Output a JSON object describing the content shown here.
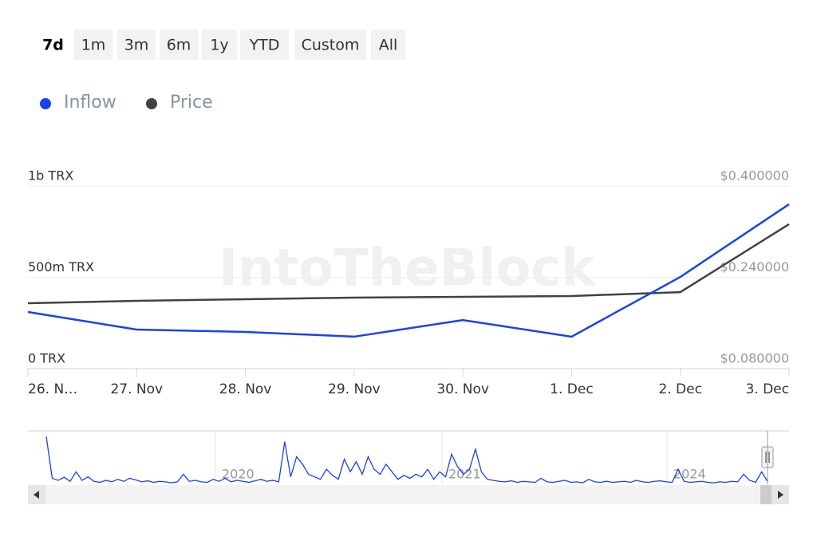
{
  "range_buttons": {
    "items": [
      "7d",
      "1m",
      "3m",
      "6m",
      "1y",
      "YTD",
      "Custom",
      "All"
    ],
    "selected_index": 0
  },
  "chart_data": {
    "type": "line",
    "watermark": "IntoTheBlock",
    "categories": [
      "26. N…",
      "27. Nov",
      "28. Nov",
      "29. Nov",
      "30. Nov",
      "1. Dec",
      "2. Dec",
      "3. Dec"
    ],
    "series": [
      {
        "name": "Inflow",
        "color": "#1a41ef",
        "values": [
          310000000,
          214000000,
          201000000,
          175000000,
          266000000,
          175000000,
          502000000,
          900000000
        ]
      },
      {
        "name": "Price",
        "color": "#3f4246",
        "axis": "y2",
        "values": [
          0.1946,
          0.1988,
          0.2016,
          0.2044,
          0.2058,
          0.2072,
          0.214,
          0.333
        ]
      }
    ],
    "ylim": [
      0,
      1000000000
    ],
    "yticks": [
      {
        "value": 0,
        "label": "0 TRX"
      },
      {
        "value": 500000000,
        "label": "500m TRX"
      },
      {
        "value": 1000000000,
        "label": "1b TRX"
      }
    ],
    "y2lim": [
      0.08,
      0.4
    ],
    "y2ticks": [
      {
        "value": 0.08,
        "label": "$0.080000"
      },
      {
        "value": 0.24,
        "label": "$0.240000"
      },
      {
        "value": 0.4,
        "label": "$0.400000"
      }
    ],
    "grid": true,
    "navigator": {
      "color": "#1a41ef",
      "ylim": [
        0,
        100
      ],
      "labels": [
        "2020",
        "2021",
        "2024"
      ],
      "values": [
        95,
        12,
        8,
        14,
        6,
        25,
        8,
        15,
        6,
        4,
        8,
        5,
        10,
        6,
        12,
        9,
        5,
        7,
        4,
        6,
        5,
        3,
        5,
        20,
        6,
        8,
        5,
        4,
        10,
        6,
        12,
        5,
        8,
        6,
        4,
        7,
        10,
        6,
        8,
        5,
        85,
        15,
        55,
        40,
        20,
        15,
        10,
        30,
        18,
        10,
        50,
        25,
        45,
        20,
        55,
        30,
        20,
        40,
        25,
        10,
        18,
        12,
        20,
        15,
        30,
        10,
        25,
        15,
        60,
        35,
        20,
        30,
        70,
        25,
        10,
        8,
        6,
        5,
        7,
        4,
        6,
        5,
        4,
        12,
        5,
        4,
        6,
        8,
        4,
        5,
        3,
        10,
        5,
        4,
        6,
        4,
        5,
        6,
        4,
        8,
        5,
        4,
        6,
        7,
        5,
        4,
        30,
        6,
        4,
        5,
        6,
        4,
        3,
        5,
        4,
        6,
        5,
        20,
        8,
        4,
        25,
        6
      ]
    }
  }
}
